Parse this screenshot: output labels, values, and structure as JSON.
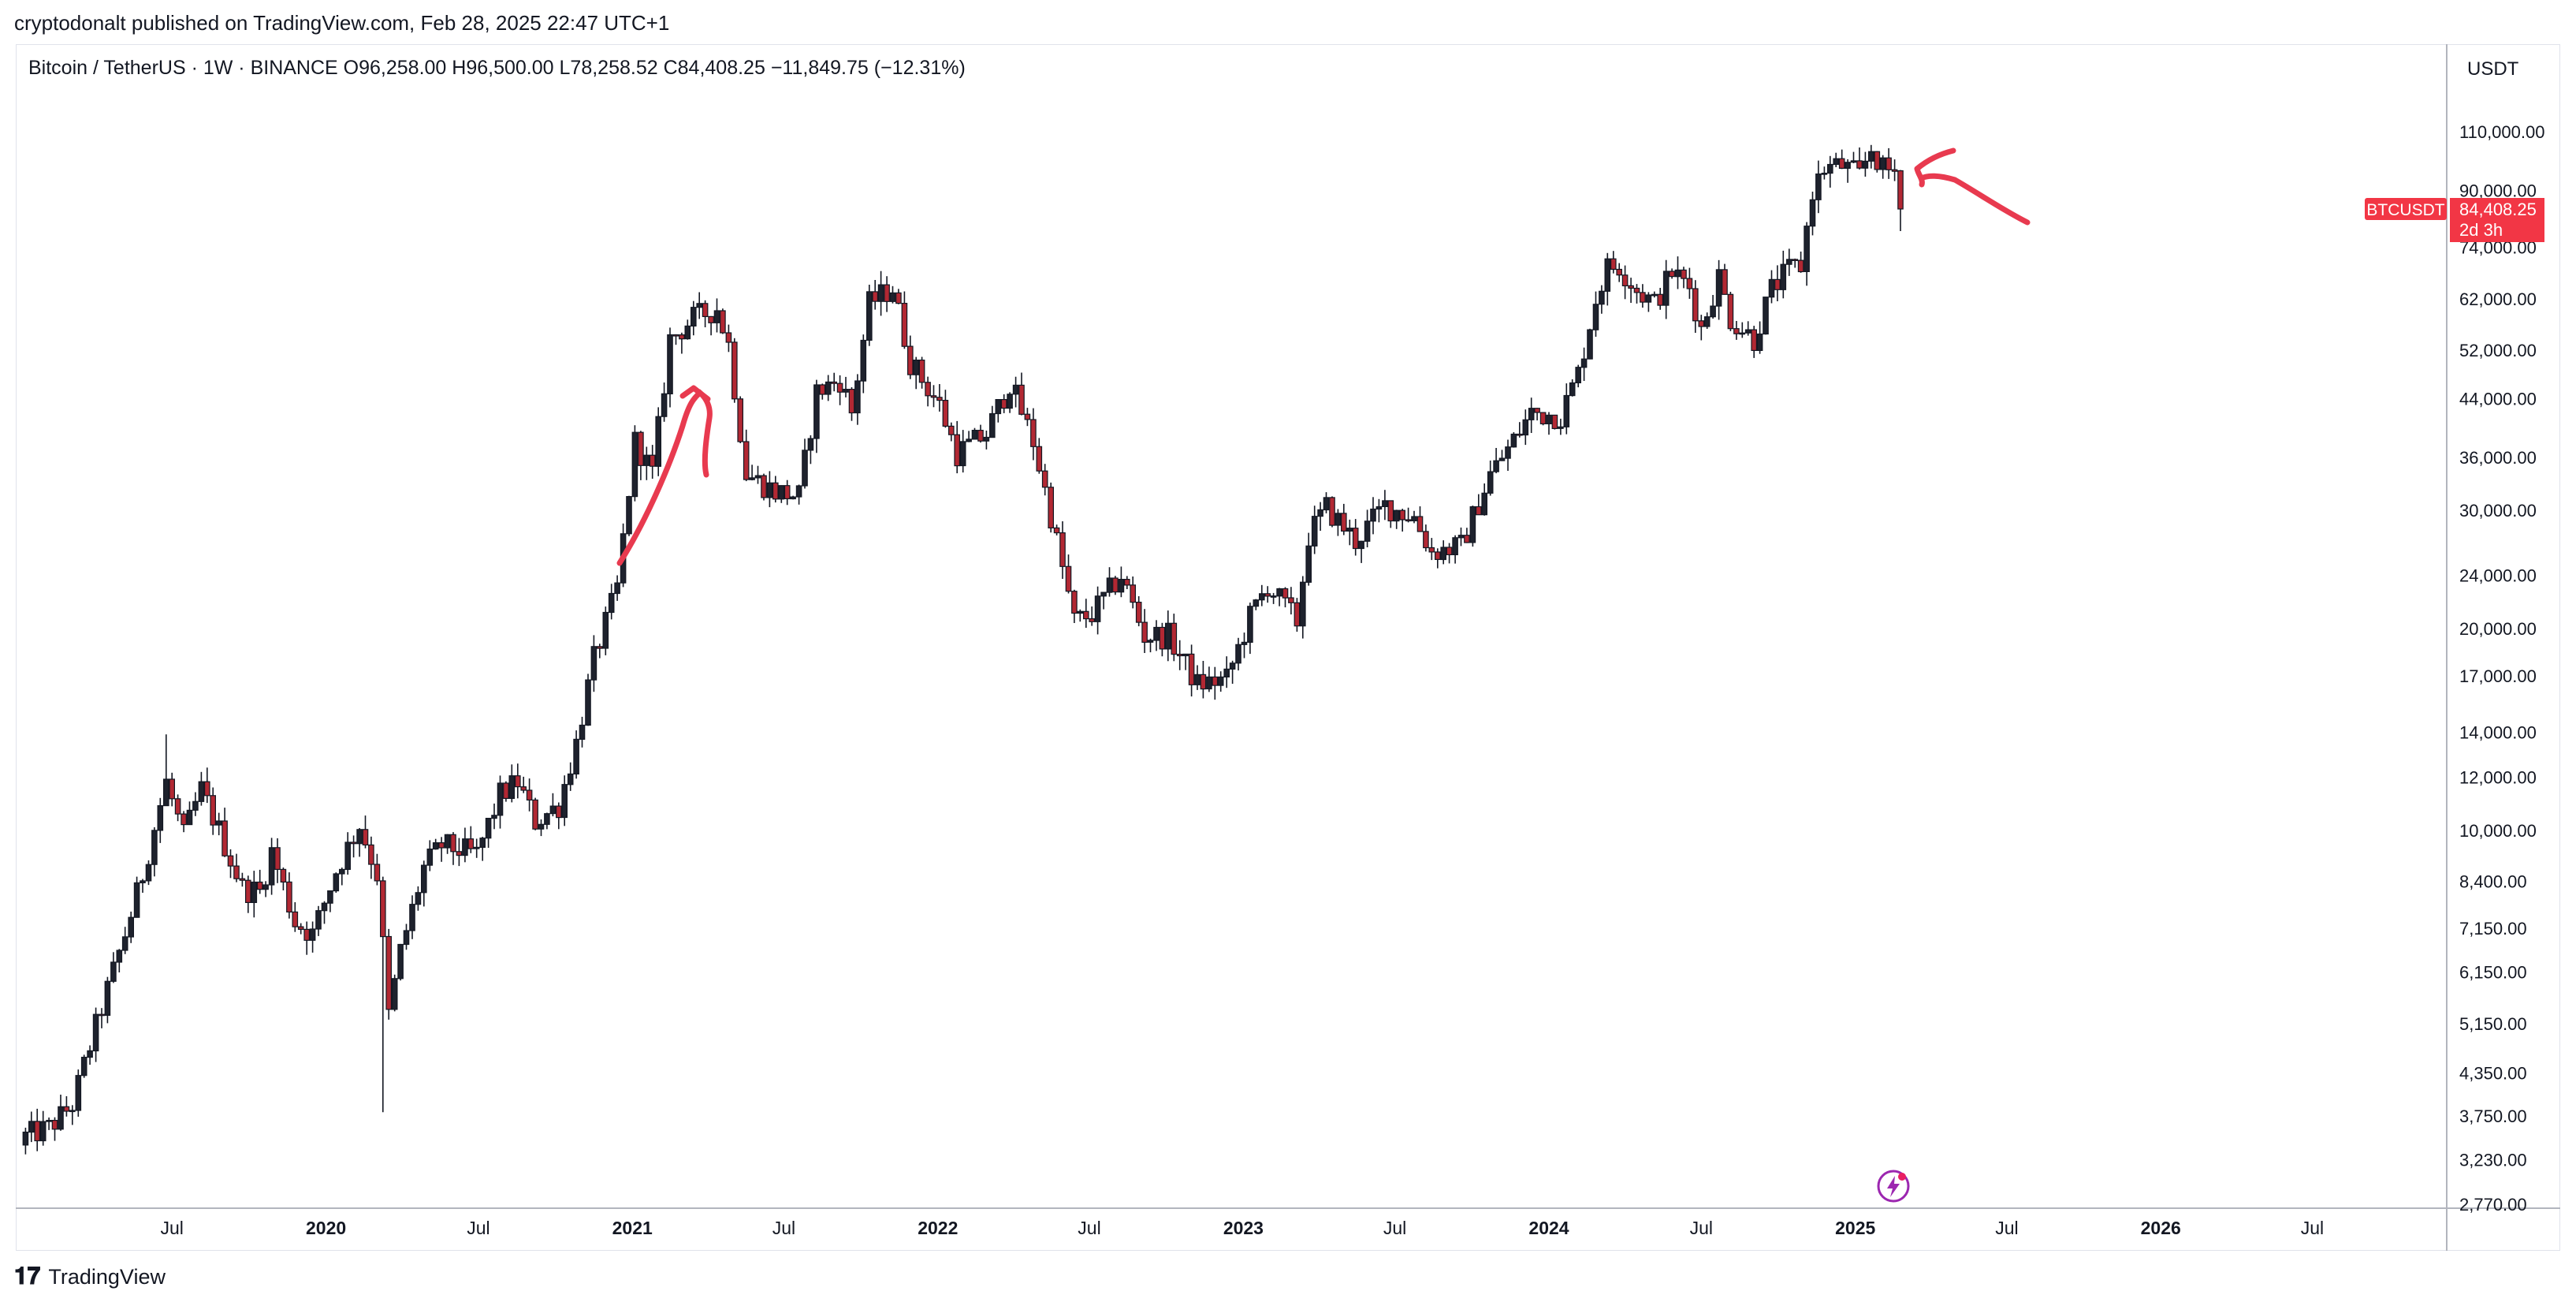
{
  "publisher": "cryptodonalt published on TradingView.com, Feb 28, 2025 22:47 UTC+1",
  "symbol_info": {
    "name": "Bitcoin / TetherUS · 1W · BINANCE",
    "open": "O96,258.00",
    "high": "H96,500.00",
    "low": "L78,258.52",
    "close": "C84,408.25",
    "change": "−11,849.75 (−12.31%)"
  },
  "currency": "USDT",
  "price_tag": {
    "symbol": "BTCUSDT",
    "price": "84,408.25",
    "countdown": "2d 3h",
    "color": "#f23645"
  },
  "brand": {
    "logo_mark": "𝟏𝟕",
    "name": "TradingView"
  },
  "colors": {
    "up": "#131722",
    "down": "#b22833",
    "annotation": "#e83a4f"
  },
  "icons": [
    "lightning-icon",
    "tradingview-logo-icon"
  ],
  "chart_data": {
    "type": "candlestick",
    "title": "Bitcoin / TetherUS · 1W · BINANCE",
    "yscale": "log",
    "ylim": [
      2770,
      125000
    ],
    "xlim": [
      "2019-01-01",
      "2026-10-15"
    ],
    "y_ticks": [
      "110,000.00",
      "90,000.00",
      "74,000.00",
      "62,000.00",
      "52,000.00",
      "44,000.00",
      "36,000.00",
      "30,000.00",
      "24,000.00",
      "20,000.00",
      "17,000.00",
      "14,000.00",
      "12,000.00",
      "10,000.00",
      "8,400.00",
      "7,150.00",
      "6,150.00",
      "5,150.00",
      "4,350.00",
      "3,750.00",
      "3,230.00",
      "2,770.00"
    ],
    "x_ticks": [
      {
        "label": "Jul",
        "date": "2019-07-01",
        "bold": false
      },
      {
        "label": "2020",
        "date": "2020-01-01",
        "bold": true
      },
      {
        "label": "Jul",
        "date": "2020-07-01",
        "bold": false
      },
      {
        "label": "2021",
        "date": "2021-01-01",
        "bold": true
      },
      {
        "label": "Jul",
        "date": "2021-07-01",
        "bold": false
      },
      {
        "label": "2022",
        "date": "2022-01-01",
        "bold": true
      },
      {
        "label": "Jul",
        "date": "2022-07-01",
        "bold": false
      },
      {
        "label": "2023",
        "date": "2023-01-01",
        "bold": true
      },
      {
        "label": "Jul",
        "date": "2023-07-01",
        "bold": false
      },
      {
        "label": "2024",
        "date": "2024-01-01",
        "bold": true
      },
      {
        "label": "Jul",
        "date": "2024-07-01",
        "bold": false
      },
      {
        "label": "2025",
        "date": "2025-01-01",
        "bold": true
      },
      {
        "label": "Jul",
        "date": "2025-07-01",
        "bold": false
      },
      {
        "label": "2026",
        "date": "2026-01-01",
        "bold": true
      },
      {
        "label": "Jul",
        "date": "2026-07-01",
        "bold": false
      }
    ],
    "weekly_close_path": [
      [
        "2019-01-07",
        3500
      ],
      [
        "2019-02-04",
        3600
      ],
      [
        "2019-03-04",
        3900
      ],
      [
        "2019-04-01",
        5100
      ],
      [
        "2019-05-06",
        7000
      ],
      [
        "2019-05-27",
        8600
      ],
      [
        "2019-06-24",
        11800
      ],
      [
        "2019-07-15",
        9800
      ],
      [
        "2019-08-05",
        11500
      ],
      [
        "2019-08-26",
        10000
      ],
      [
        "2019-09-23",
        8200
      ],
      [
        "2019-10-14",
        8100
      ],
      [
        "2019-10-28",
        9300
      ],
      [
        "2019-11-25",
        7300
      ],
      [
        "2019-12-16",
        7000
      ],
      [
        "2020-01-13",
        8700
      ],
      [
        "2020-02-10",
        10200
      ],
      [
        "2020-03-02",
        8600
      ],
      [
        "2020-03-16",
        5300
      ],
      [
        "2020-03-30",
        6600
      ],
      [
        "2020-04-27",
        8800
      ],
      [
        "2020-05-18",
        9500
      ],
      [
        "2020-06-29",
        9200
      ],
      [
        "2020-07-27",
        11300
      ],
      [
        "2020-08-17",
        11800
      ],
      [
        "2020-09-07",
        10300
      ],
      [
        "2020-10-05",
        10900
      ],
      [
        "2020-10-26",
        13500
      ],
      [
        "2020-11-16",
        18000
      ],
      [
        "2020-12-14",
        23000
      ],
      [
        "2021-01-04",
        38000
      ],
      [
        "2021-01-25",
        34000
      ],
      [
        "2021-02-15",
        54000
      ],
      [
        "2021-03-15",
        58000
      ],
      [
        "2021-04-12",
        60000
      ],
      [
        "2021-04-26",
        53000
      ],
      [
        "2021-05-17",
        34000
      ],
      [
        "2021-06-21",
        32000
      ],
      [
        "2021-07-19",
        31500
      ],
      [
        "2021-08-09",
        45000
      ],
      [
        "2021-09-06",
        47000
      ],
      [
        "2021-09-20",
        42000
      ],
      [
        "2021-10-11",
        61000
      ],
      [
        "2021-11-08",
        64500
      ],
      [
        "2021-11-29",
        50000
      ],
      [
        "2022-01-03",
        43000
      ],
      [
        "2022-01-24",
        36500
      ],
      [
        "2022-02-28",
        39000
      ],
      [
        "2022-03-28",
        46500
      ],
      [
        "2022-04-25",
        38000
      ],
      [
        "2022-05-16",
        29500
      ],
      [
        "2022-06-13",
        20500
      ],
      [
        "2022-07-04",
        21000
      ],
      [
        "2022-08-08",
        24000
      ],
      [
        "2022-09-05",
        19500
      ],
      [
        "2022-10-03",
        19500
      ],
      [
        "2022-11-07",
        16500
      ],
      [
        "2022-12-12",
        16800
      ],
      [
        "2023-01-09",
        20800
      ],
      [
        "2023-01-30",
        23200
      ],
      [
        "2023-03-06",
        20500
      ],
      [
        "2023-03-20",
        27500
      ],
      [
        "2023-04-10",
        30300
      ],
      [
        "2023-05-15",
        27000
      ],
      [
        "2023-06-19",
        30500
      ],
      [
        "2023-07-24",
        29300
      ],
      [
        "2023-08-14",
        26000
      ],
      [
        "2023-09-18",
        26500
      ],
      [
        "2023-10-23",
        34000
      ],
      [
        "2023-11-13",
        37000
      ],
      [
        "2023-12-11",
        42000
      ],
      [
        "2024-01-15",
        41500
      ],
      [
        "2024-02-05",
        48000
      ],
      [
        "2024-02-26",
        62000
      ],
      [
        "2024-03-11",
        69000
      ],
      [
        "2024-03-25",
        69500
      ],
      [
        "2024-04-15",
        64000
      ],
      [
        "2024-05-06",
        61000
      ],
      [
        "2024-05-27",
        68000
      ],
      [
        "2024-06-17",
        64500
      ],
      [
        "2024-07-01",
        56000
      ],
      [
        "2024-07-22",
        67000
      ],
      [
        "2024-08-05",
        58000
      ],
      [
        "2024-09-02",
        54000
      ],
      [
        "2024-09-23",
        64000
      ],
      [
        "2024-10-14",
        68500
      ],
      [
        "2024-10-28",
        69500
      ],
      [
        "2024-11-11",
        90000
      ],
      [
        "2024-11-25",
        97000
      ],
      [
        "2024-12-16",
        98000
      ],
      [
        "2025-01-06",
        94500
      ],
      [
        "2025-01-20",
        104000
      ],
      [
        "2025-02-03",
        96500
      ],
      [
        "2025-02-17",
        96258
      ],
      [
        "2025-02-24",
        84408
      ]
    ],
    "last_candle": {
      "date": "2025-02-24",
      "open": 96258.0,
      "high": 96500.0,
      "low": 78258.52,
      "close": 84408.25
    }
  }
}
